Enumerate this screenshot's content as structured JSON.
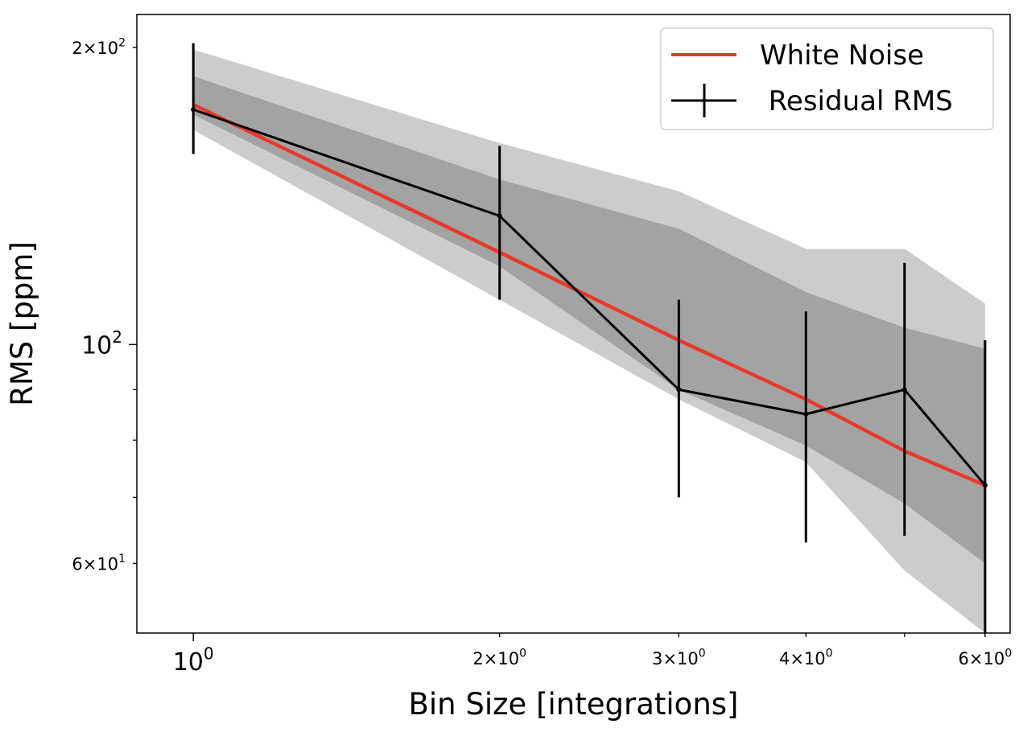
{
  "chart_data": {
    "type": "line",
    "xscale": "log",
    "yscale": "log",
    "xlim": [
      0.88,
      6.35
    ],
    "ylim": [
      51,
      216
    ],
    "xlabel": "Bin Size [integrations]",
    "ylabel": "RMS [ppm]",
    "grid": false,
    "legend_position": "top-right",
    "x_ticks": [
      {
        "value": 1,
        "mantissa": "",
        "base": "10",
        "exp": "0",
        "size": "large"
      },
      {
        "value": 2,
        "mantissa": "2",
        "base": "10",
        "exp": "0",
        "size": "small"
      },
      {
        "value": 3,
        "mantissa": "3",
        "base": "10",
        "exp": "0",
        "size": "small"
      },
      {
        "value": 4,
        "mantissa": "4",
        "base": "10",
        "exp": "0",
        "size": "small"
      },
      {
        "value": 6,
        "mantissa": "6",
        "base": "10",
        "exp": "0",
        "size": "small"
      }
    ],
    "y_ticks": [
      {
        "value": 200,
        "mantissa": "2",
        "base": "10",
        "exp": "2",
        "size": "small"
      },
      {
        "value": 100,
        "mantissa": "",
        "base": "10",
        "exp": "2",
        "size": "large"
      },
      {
        "value": 60,
        "mantissa": "6",
        "base": "10",
        "exp": "1",
        "size": "small"
      }
    ],
    "x": [
      1,
      2,
      3,
      4,
      5,
      6
    ],
    "bands": [
      {
        "level": "outer",
        "color": "#cccccc",
        "upper": [
          199,
          160,
          143,
          125,
          125,
          110
        ],
        "lower": [
          165,
          111,
          88,
          76,
          59,
          51
        ]
      },
      {
        "level": "inner",
        "color": "#a3a3a3",
        "upper": [
          187,
          147,
          131,
          113,
          104,
          99
        ],
        "lower": [
          171,
          120,
          90,
          79,
          69,
          60
        ]
      }
    ],
    "series": [
      {
        "name": "White Noise",
        "kind": "line",
        "color": "#e8392a",
        "values": [
          175,
          124,
          101,
          88,
          78,
          72
        ]
      },
      {
        "name": " Residual RMS",
        "kind": "errorbar",
        "color": "#000000",
        "values": [
          173,
          135,
          90,
          85,
          90,
          72
        ],
        "err_low": [
          17,
          24,
          20,
          22,
          26,
          21
        ],
        "err_high": [
          29,
          24,
          21,
          23,
          31,
          29
        ]
      }
    ]
  }
}
